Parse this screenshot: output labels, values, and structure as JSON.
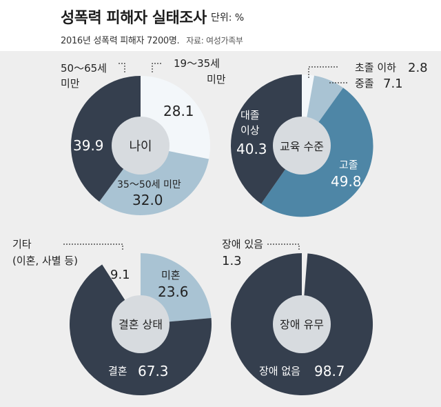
{
  "header": {
    "title": "성폭력 피해자 실태조사",
    "unit": "단위: %",
    "subtitle": "2016년 성폭력 피해자 7200명.",
    "source": "자료: 여성가족부"
  },
  "colors": {
    "background": "#eeeeee",
    "dark": "#353f4e",
    "light_blue": "#a9c3d3",
    "white_slice": "#f3f7fa",
    "steel_blue": "#4e86a6",
    "center_disc": "#d7dbdf"
  },
  "chart_data": [
    {
      "type": "pie",
      "title": "나이",
      "slices": [
        {
          "label": "19～35세 미만",
          "value": 28.1,
          "color": "#f3f7fa"
        },
        {
          "label": "35～50세 미만",
          "value": 32.0,
          "color": "#a9c3d3"
        },
        {
          "label": "50～65세 미만",
          "value": 39.9,
          "color": "#353f4e"
        }
      ]
    },
    {
      "type": "pie",
      "title": "교육 수준",
      "slices": [
        {
          "label": "초졸 이하",
          "value": 2.8,
          "color": "#f3f7fa"
        },
        {
          "label": "중졸",
          "value": 7.1,
          "color": "#a9c3d3"
        },
        {
          "label": "고졸",
          "value": 49.8,
          "color": "#4e86a6"
        },
        {
          "label": "대졸 이상",
          "value": 40.3,
          "color": "#353f4e"
        }
      ]
    },
    {
      "type": "pie",
      "title": "결혼 상태",
      "slices": [
        {
          "label": "미혼",
          "value": 23.6,
          "color": "#a9c3d3"
        },
        {
          "label": "결혼",
          "value": 67.3,
          "color": "#353f4e"
        },
        {
          "label": "기타 (이혼, 사별 등)",
          "value": 9.1,
          "color": "#eeeeee"
        }
      ]
    },
    {
      "type": "pie",
      "title": "장애 유무",
      "slices": [
        {
          "label": "장애 있음",
          "value": 1.3,
          "color": "#eeeeee"
        },
        {
          "label": "장애 없음",
          "value": 98.7,
          "color": "#353f4e"
        }
      ]
    }
  ],
  "labels": {
    "age": {
      "l19_1": "19～35세",
      "l19_2": "미만",
      "v19": "28.1",
      "l35": "35～50세 미만",
      "v35": "32.0",
      "l50_1": "50～65세",
      "l50_2": "미만",
      "v50": "39.9"
    },
    "edu": {
      "lElem": "초졸 이하",
      "vElem": "2.8",
      "lMid": "중졸",
      "vMid": "7.1",
      "lHigh": "고졸",
      "vHigh": "49.8",
      "lUniv1": "대졸",
      "lUniv2": "이상",
      "vUniv": "40.3"
    },
    "mar": {
      "lSingle": "미혼",
      "vSingle": "23.6",
      "lMarried": "결혼",
      "vMarried": "67.3",
      "lOther1": "기타",
      "lOther2": "(이혼, 사별 등)",
      "vOther": "9.1"
    },
    "dis": {
      "lYes": "장애 있음",
      "vYes": "1.3",
      "lNo": "장애 없음",
      "vNo": "98.7"
    }
  }
}
